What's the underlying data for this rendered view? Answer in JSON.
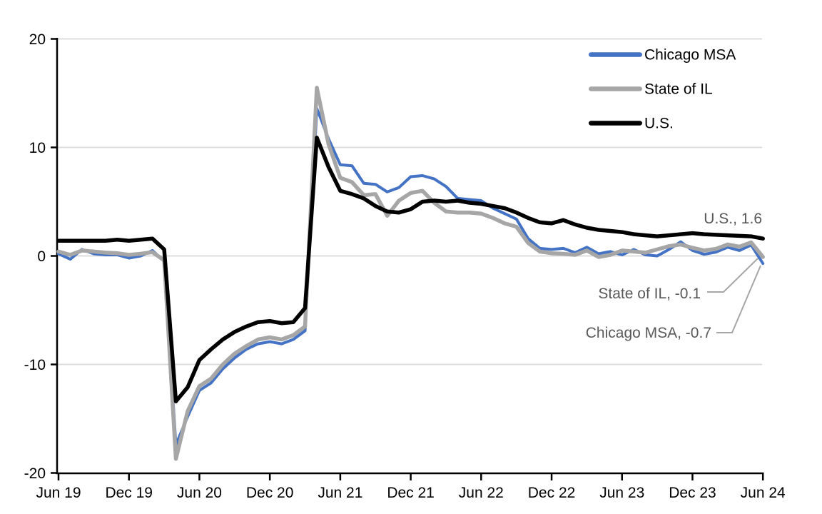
{
  "chart_data": {
    "type": "line",
    "title": "",
    "xlabel": "",
    "ylabel": "",
    "ylim": [
      -20,
      20
    ],
    "grid": "horizontal",
    "legend_position": "top-right-inside",
    "x_unit": "month",
    "x_start": "Jun 2019",
    "x_end": "Jun 2024",
    "x_tick_labels": [
      "Jun 19",
      "Dec 19",
      "Jun 20",
      "Dec 20",
      "Jun 21",
      "Dec 21",
      "Jun 22",
      "Dec 22",
      "Jun 23",
      "Dec 23",
      "Jun 24"
    ],
    "y_ticks": [
      20,
      10,
      0,
      -10,
      -20
    ],
    "y_tick_labels": [
      "20",
      "10",
      "0",
      "-10",
      "-20"
    ],
    "y_gridline_values": [
      20,
      10,
      0,
      -10
    ],
    "series": [
      {
        "name": "Chicago MSA",
        "color": "#4472C4",
        "stroke_width": 4,
        "values": [
          0.2,
          -0.3,
          0.6,
          0.2,
          0.1,
          0.1,
          -0.2,
          0.0,
          0.5,
          -0.5,
          -17.4,
          -14.8,
          -12.4,
          -11.7,
          -10.4,
          -9.4,
          -8.6,
          -8.1,
          -7.9,
          -8.1,
          -7.7,
          -6.9,
          13.6,
          10.8,
          8.4,
          8.3,
          6.7,
          6.6,
          5.9,
          6.3,
          7.3,
          7.4,
          7.1,
          6.4,
          5.3,
          5.2,
          5.1,
          4.4,
          3.9,
          3.4,
          1.6,
          0.7,
          0.6,
          0.7,
          0.3,
          0.8,
          0.2,
          0.4,
          0.1,
          0.6,
          0.1,
          0.0,
          0.6,
          1.3,
          0.5,
          0.15,
          0.35,
          0.8,
          0.5,
          1.0,
          -0.7
        ]
      },
      {
        "name": "State of IL",
        "color": "#A6A6A6",
        "stroke_width": 5.5,
        "values": [
          0.4,
          0.1,
          0.5,
          0.4,
          0.3,
          0.25,
          0.1,
          0.2,
          0.35,
          -0.4,
          -18.7,
          -14.3,
          -12.0,
          -11.3,
          -10.0,
          -9.0,
          -8.3,
          -7.7,
          -7.5,
          -7.7,
          -7.3,
          -6.5,
          15.5,
          10.3,
          7.2,
          6.8,
          5.6,
          5.7,
          3.7,
          5.1,
          5.8,
          6.0,
          4.9,
          4.1,
          4.0,
          4.0,
          3.9,
          3.5,
          3.0,
          2.7,
          1.2,
          0.4,
          0.25,
          0.2,
          0.1,
          0.5,
          -0.1,
          0.1,
          0.5,
          0.4,
          0.3,
          0.6,
          0.9,
          1.05,
          0.75,
          0.5,
          0.65,
          1.05,
          0.85,
          1.25,
          -0.1
        ]
      },
      {
        "name": "U.S.",
        "color": "#000000",
        "stroke_width": 5.5,
        "values": [
          1.4,
          1.4,
          1.4,
          1.4,
          1.4,
          1.5,
          1.4,
          1.5,
          1.6,
          0.6,
          -13.4,
          -12.1,
          -9.6,
          -8.6,
          -7.7,
          -7.0,
          -6.5,
          -6.1,
          -6.0,
          -6.2,
          -6.1,
          -4.8,
          10.9,
          8.2,
          6.0,
          5.7,
          5.3,
          4.6,
          4.1,
          4.0,
          4.3,
          5.0,
          5.1,
          5.0,
          5.1,
          4.9,
          4.8,
          4.6,
          4.4,
          4.0,
          3.5,
          3.1,
          3.0,
          3.3,
          2.9,
          2.6,
          2.4,
          2.3,
          2.2,
          2.0,
          1.9,
          1.8,
          1.9,
          2.0,
          2.1,
          2.0,
          1.95,
          1.9,
          1.85,
          1.8,
          1.6
        ]
      }
    ],
    "end_values": {
      "us": 1.6,
      "state_of_il": -0.1,
      "chicago_msa": -0.7
    },
    "annotations": [
      {
        "text": "U.S., 1.6"
      },
      {
        "text": "State of IL, -0.1"
      },
      {
        "text": "Chicago MSA, -0.7"
      }
    ],
    "colors": {
      "gridline": "#D9D9D9",
      "axis": "#000000",
      "annotation_text": "#595959",
      "leader_line": "#A6A6A6",
      "background": "#FFFFFF"
    }
  }
}
